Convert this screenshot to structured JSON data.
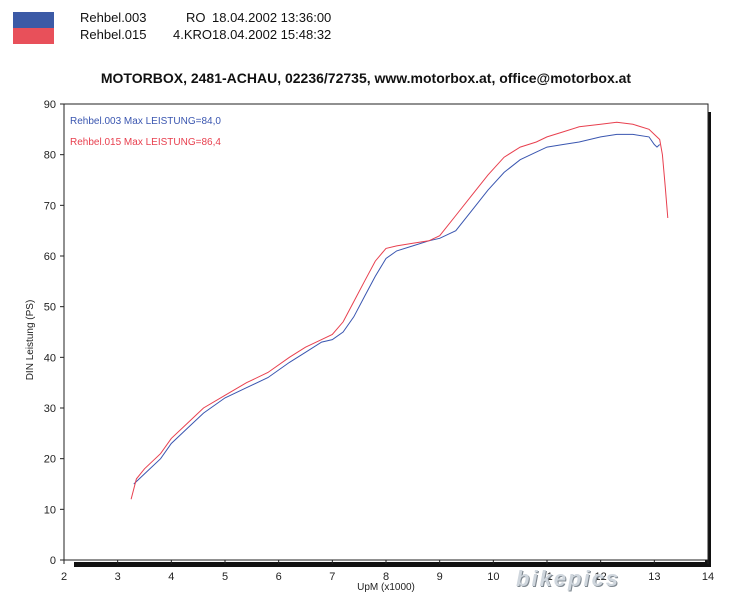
{
  "header": {
    "runs": [
      {
        "file": "Rehbel.003",
        "tag": "RO",
        "datetime": "18.04.2002 13:36:00",
        "color": "#3c5aa6"
      },
      {
        "file": "Rehbel.015",
        "tag": "4.KRO",
        "datetime": "18.04.2002 15:48:32",
        "color": "#e8505a"
      }
    ],
    "title": "MOTORBOX, 2481-ACHAU, 02236/72735, www.motorbox.at, office@motorbox.at"
  },
  "watermark": "bikepics",
  "chart_data": {
    "type": "line",
    "xlabel": "UpM (x1000)",
    "ylabel": "DIN Leistung (PS)",
    "xlim": [
      2,
      14
    ],
    "ylim": [
      0,
      90
    ],
    "x_ticks": [
      2,
      3,
      4,
      5,
      6,
      7,
      8,
      9,
      10,
      11,
      12,
      13,
      14
    ],
    "y_ticks": [
      0,
      10,
      20,
      30,
      40,
      50,
      60,
      70,
      80,
      90
    ],
    "grid": false,
    "series": [
      {
        "name": "Rehbel.003  Max LEISTUNG=84,0",
        "color": "#3a56b0",
        "x": [
          3.3,
          3.5,
          3.8,
          4.0,
          4.3,
          4.6,
          5.0,
          5.4,
          5.8,
          6.2,
          6.5,
          6.8,
          7.0,
          7.2,
          7.4,
          7.6,
          7.8,
          8.0,
          8.2,
          8.5,
          8.8,
          9.0,
          9.3,
          9.6,
          9.9,
          10.2,
          10.5,
          10.8,
          11.0,
          11.3,
          11.6,
          12.0,
          12.3,
          12.6,
          12.9,
          13.0,
          13.05,
          13.1
        ],
        "y": [
          15,
          17,
          20,
          23,
          26,
          29,
          32,
          34,
          36,
          39,
          41,
          43,
          43.5,
          45,
          48,
          52,
          56,
          59.5,
          61,
          62,
          63,
          63.5,
          65,
          69,
          73,
          76.5,
          79,
          80.5,
          81.5,
          82,
          82.5,
          83.5,
          84,
          84,
          83.5,
          82,
          81.5,
          82
        ]
      },
      {
        "name": "Rehbel.015  Max LEISTUNG=86,4",
        "color": "#e8404f",
        "x": [
          3.25,
          3.35,
          3.5,
          3.8,
          4.0,
          4.3,
          4.6,
          5.0,
          5.4,
          5.8,
          6.2,
          6.5,
          6.8,
          7.0,
          7.2,
          7.4,
          7.6,
          7.8,
          8.0,
          8.2,
          8.5,
          8.8,
          9.0,
          9.3,
          9.6,
          9.9,
          10.2,
          10.5,
          10.8,
          11.0,
          11.3,
          11.6,
          12.0,
          12.3,
          12.6,
          12.9,
          13.0,
          13.1,
          13.15,
          13.2,
          13.25
        ],
        "y": [
          12,
          16,
          18,
          21,
          24,
          27,
          30,
          32.5,
          35,
          37,
          40,
          42,
          43.5,
          44.5,
          47,
          51,
          55,
          59,
          61.5,
          62,
          62.5,
          63,
          64,
          68,
          72,
          76,
          79.5,
          81.5,
          82.5,
          83.5,
          84.5,
          85.5,
          86,
          86.4,
          86,
          85,
          84,
          83,
          80,
          74,
          67.5
        ]
      }
    ]
  }
}
